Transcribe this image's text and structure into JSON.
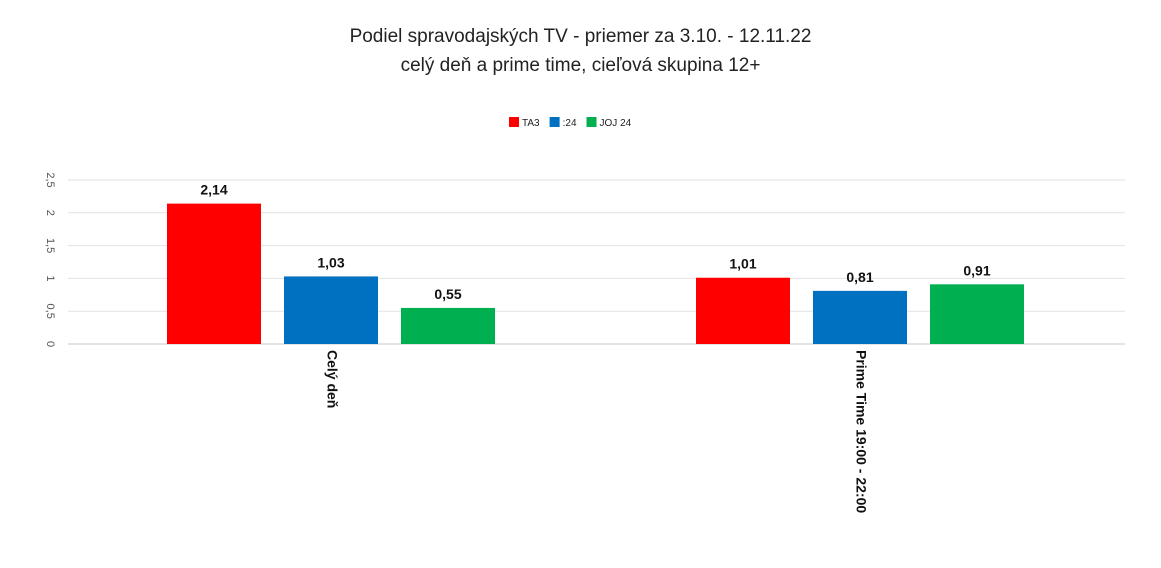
{
  "chart_data": {
    "type": "bar",
    "title": "Podiel spravodajských TV - priemer za 3.10. - 12.11.22",
    "subtitle": "celý deň a prime time, cieľová skupina 12+",
    "categories": [
      "Celý deň",
      "Prime Time 19:00 - 22:00"
    ],
    "series": [
      {
        "name": "TA3",
        "color": "#ff0000",
        "values": [
          2.14,
          1.01
        ],
        "labels": [
          "2,14",
          "1,01"
        ]
      },
      {
        "name": ":24",
        "color": "#0070c0",
        "values": [
          1.03,
          0.81
        ],
        "labels": [
          "1,03",
          "0,81"
        ]
      },
      {
        "name": "JOJ 24",
        "color": "#00b050",
        "values": [
          0.55,
          0.91
        ],
        "labels": [
          "0,55",
          "0,91"
        ]
      }
    ],
    "yticks": [
      "0",
      "0,5",
      "1",
      "1,5",
      "2",
      "2,5"
    ],
    "ylim": [
      0,
      2.5
    ],
    "grid": true,
    "legend": "top-center"
  }
}
